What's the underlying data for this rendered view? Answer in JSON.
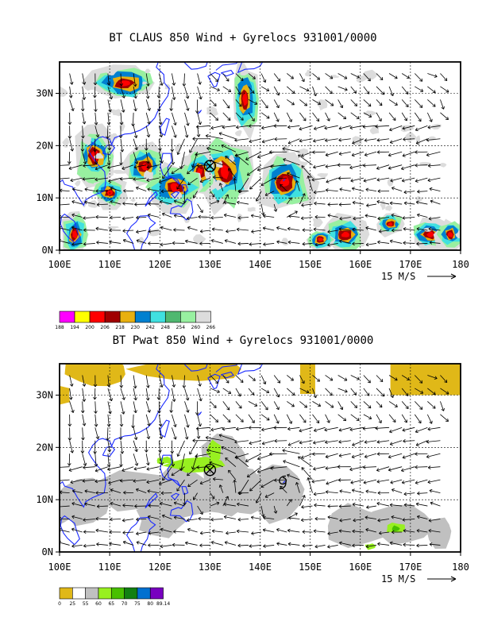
{
  "colors": {
    "coast": "#1b2bff",
    "grid": "#000000",
    "arrow": "#000000"
  },
  "chart_data": [
    {
      "type": "heatmap",
      "title": "BT CLAUS 850 Wind + Gyrelocs 931001/0000",
      "x_tick_labels": [
        "100E",
        "110E",
        "120E",
        "130E",
        "140E",
        "150E",
        "160E",
        "170E",
        "180"
      ],
      "y_tick_labels": [
        "0N",
        "10N",
        "20N",
        "30N"
      ],
      "x_ticks": [
        100,
        110,
        120,
        130,
        140,
        150,
        160,
        170,
        180
      ],
      "y_ticks": [
        0,
        10,
        20,
        30
      ],
      "xlim": [
        100,
        180
      ],
      "ylim": [
        0,
        36
      ],
      "grid": true,
      "reference_vector_label": "15 M/S",
      "colorbar": {
        "values": [
          "188",
          "194",
          "200",
          "206",
          "218",
          "230",
          "242",
          "248",
          "254",
          "260",
          "266"
        ],
        "colors": [
          "#ff00ff",
          "#ffff00",
          "#ff0000",
          "#a00000",
          "#e8b010",
          "#0080d0",
          "#40e0e0",
          "#50b870",
          "#98f0a0",
          "#dcdcdc"
        ]
      },
      "gyre_markers": [
        {
          "x": 130,
          "y": 16.1,
          "symbol": "circled-x"
        }
      ]
    },
    {
      "type": "heatmap",
      "title": "BT Pwat 850 Wind + Gyrelocs 931001/0000",
      "x_tick_labels": [
        "100E",
        "110E",
        "120E",
        "130E",
        "140E",
        "150E",
        "160E",
        "170E",
        "180"
      ],
      "y_tick_labels": [
        "0N",
        "10N",
        "20N",
        "30N"
      ],
      "x_ticks": [
        100,
        110,
        120,
        130,
        140,
        150,
        160,
        170,
        180
      ],
      "y_ticks": [
        0,
        10,
        20,
        30
      ],
      "xlim": [
        100,
        180
      ],
      "ylim": [
        0,
        36
      ],
      "grid": true,
      "reference_vector_label": "15 M/S",
      "colorbar": {
        "values": [
          "0",
          "25",
          "55",
          "60",
          "65",
          "70",
          "75",
          "80",
          "89.14"
        ],
        "colors": [
          "#e0b818",
          "#ffffff",
          "#c0c0c0",
          "#98f020",
          "#48c000",
          "#128012",
          "#0070d0",
          "#7800c0"
        ]
      },
      "gyre_markers": [
        {
          "x": 130,
          "y": 15.7,
          "symbol": "circled-x"
        },
        {
          "x": 144.5,
          "y": 13.3,
          "symbol": "typhoon"
        }
      ]
    }
  ]
}
